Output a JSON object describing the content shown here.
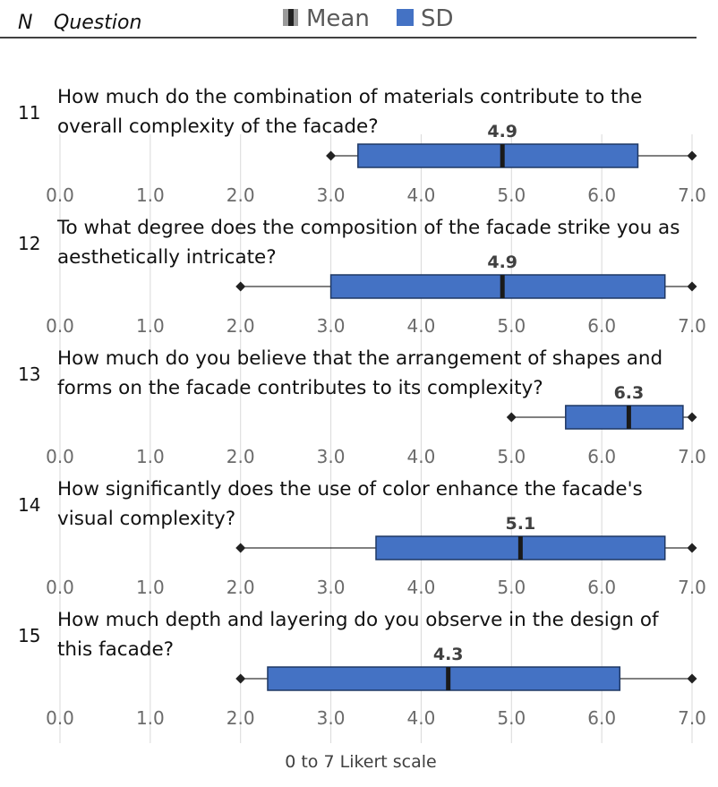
{
  "header": {
    "n_label": "N",
    "question_label": "Question"
  },
  "legend": [
    {
      "label": "Mean",
      "icon": "mean-marker-icon"
    },
    {
      "label": "SD",
      "icon": "sd-box-icon",
      "color": "#4472C4"
    }
  ],
  "chart_data": {
    "type": "boxplot",
    "xlabel": "0 to 7 Likert scale",
    "xlim": [
      0,
      7
    ],
    "tick_labels": [
      "0.0",
      "1.0",
      "2.0",
      "3.0",
      "4.0",
      "5.0",
      "6.0",
      "7.0"
    ],
    "grid": true,
    "legend_position": "top",
    "colors": {
      "box": "#4472C4",
      "box_edge": "#1f3864",
      "grid": "#d9d9d9",
      "whisker": "#000000"
    },
    "rows": [
      {
        "n": "11",
        "question": [
          "How much do the combination of materials contribute to the",
          "overall complexity of the facade?"
        ],
        "mean": 4.9,
        "mean_label": "4.9",
        "sd_low": 3.3,
        "sd_high": 6.4,
        "min": 3.0,
        "max": 7.0
      },
      {
        "n": "12",
        "question": [
          "To what degree does the composition of the facade strike you as",
          "aesthetically intricate?"
        ],
        "mean": 4.9,
        "mean_label": "4.9",
        "sd_low": 3.0,
        "sd_high": 6.7,
        "min": 2.0,
        "max": 7.0
      },
      {
        "n": "13",
        "question": [
          "How much do you believe that the arrangement of shapes and",
          "forms on the facade contributes to its complexity?"
        ],
        "mean": 6.3,
        "mean_label": "6.3",
        "sd_low": 5.6,
        "sd_high": 6.9,
        "min": 5.0,
        "max": 7.0
      },
      {
        "n": "14",
        "question": [
          "How significantly does the use of color enhance the facade's",
          "visual complexity?"
        ],
        "mean": 5.1,
        "mean_label": "5.1",
        "sd_low": 3.5,
        "sd_high": 6.7,
        "min": 2.0,
        "max": 7.0
      },
      {
        "n": "15",
        "question": [
          "How much depth and layering do you observe in the design of",
          "this facade?"
        ],
        "mean": 4.3,
        "mean_label": "4.3",
        "sd_low": 2.3,
        "sd_high": 6.2,
        "min": 2.0,
        "max": 7.0
      }
    ]
  }
}
